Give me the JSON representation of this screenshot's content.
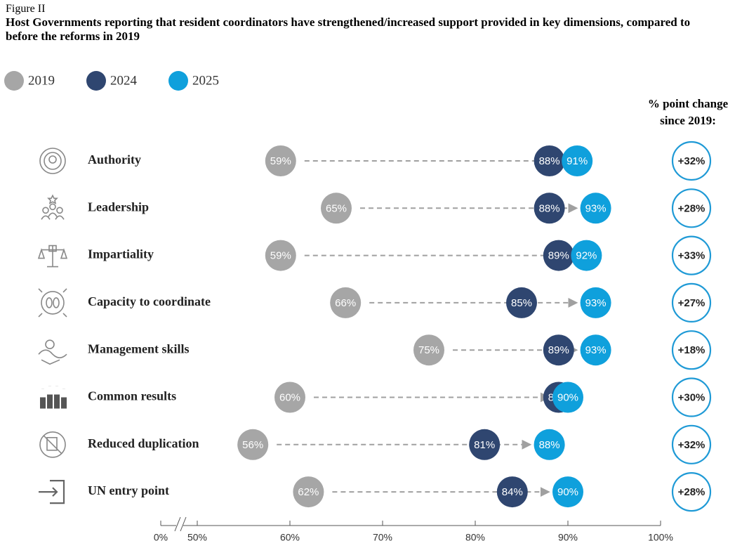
{
  "chart_data": {
    "type": "dot",
    "figure_label": "Figure II",
    "title": "Host Governments reporting that resident coordinators have strengthened/increased support provided in key dimensions, compared to before the reforms in 2019",
    "categories": [
      "Authority",
      "Leadership",
      "Impartiality",
      "Capacity to coordinate",
      "Management skills",
      "Common results",
      "Reduced duplication",
      "UN entry point"
    ],
    "series": [
      {
        "name": "2019",
        "color": "#a6a6a6",
        "values": [
          59,
          65,
          59,
          66,
          75,
          60,
          56,
          62
        ],
        "value_labels": [
          "59%",
          "65%",
          "59%",
          "66%",
          "75%",
          "60%",
          "56%",
          "62%"
        ]
      },
      {
        "name": "2024",
        "color": "#2f4670",
        "values": [
          88,
          88,
          89,
          85,
          89,
          89,
          81,
          84
        ],
        "value_labels": [
          "88%",
          "88%",
          "89%",
          "85%",
          "89%",
          "89%",
          "81%",
          "84%"
        ]
      },
      {
        "name": "2025",
        "color": "#0fa0dc",
        "values": [
          91,
          93,
          92,
          93,
          93,
          90,
          88,
          90
        ],
        "value_labels": [
          "91%",
          "93%",
          "92%",
          "93%",
          "93%",
          "90%",
          "88%",
          "90%"
        ]
      }
    ],
    "change": {
      "name": "% point change since 2019:",
      "color": "#1f9ad6",
      "values": [
        32,
        28,
        33,
        27,
        18,
        30,
        32,
        28
      ],
      "value_labels": [
        "+32%",
        "+28%",
        "+33%",
        "+27%",
        "+18%",
        "+30%",
        "+32%",
        "+28%"
      ]
    },
    "xlim": [
      50,
      100
    ],
    "xticks": [
      {
        "value": 0,
        "label": "0%"
      },
      {
        "value": 50,
        "label": "50%"
      },
      {
        "value": 60,
        "label": "60%"
      },
      {
        "value": 70,
        "label": "70%"
      },
      {
        "value": 80,
        "label": "80%"
      },
      {
        "value": 90,
        "label": "90%"
      },
      {
        "value": 100,
        "label": "100%"
      }
    ],
    "axis_break": true,
    "legend": "top-left"
  }
}
